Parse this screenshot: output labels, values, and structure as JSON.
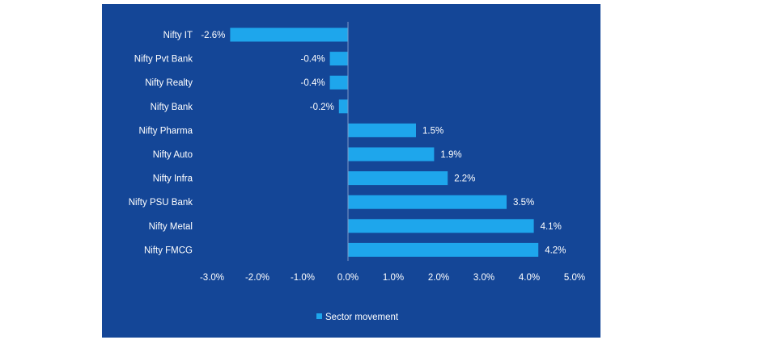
{
  "colors": {
    "panel_background": "#144697",
    "bar": "#1ea6ec",
    "axis": "#7f99c9",
    "text": "#ffffff"
  },
  "chart_data": {
    "type": "bar",
    "orientation": "horizontal",
    "categories": [
      "Nifty IT",
      "Nifty Pvt Bank",
      "Nifty Realty",
      "Nifty Bank",
      "Nifty Pharma",
      "Nifty Auto",
      "Nifty Infra",
      "Nifty PSU Bank",
      "Nifty Metal",
      "Nifty FMCG"
    ],
    "series": [
      {
        "name": "Sector movement",
        "values": [
          -2.6,
          -0.4,
          -0.4,
          -0.2,
          1.5,
          1.9,
          2.2,
          3.5,
          4.1,
          4.2
        ],
        "labels": [
          "-2.6%",
          "-0.4%",
          "-0.4%",
          "-0.2%",
          "1.5%",
          "1.9%",
          "2.2%",
          "3.5%",
          "4.1%",
          "4.2%"
        ]
      }
    ],
    "xlim": [
      -3.0,
      5.0
    ],
    "xticks": [
      -3.0,
      -2.0,
      -1.0,
      0.0,
      1.0,
      2.0,
      3.0,
      4.0,
      5.0
    ],
    "xtick_labels": [
      "-3.0%",
      "-2.0%",
      "-1.0%",
      "0.0%",
      "1.0%",
      "2.0%",
      "3.0%",
      "4.0%",
      "5.0%"
    ],
    "grid": false,
    "legend_position": "bottom-center"
  }
}
